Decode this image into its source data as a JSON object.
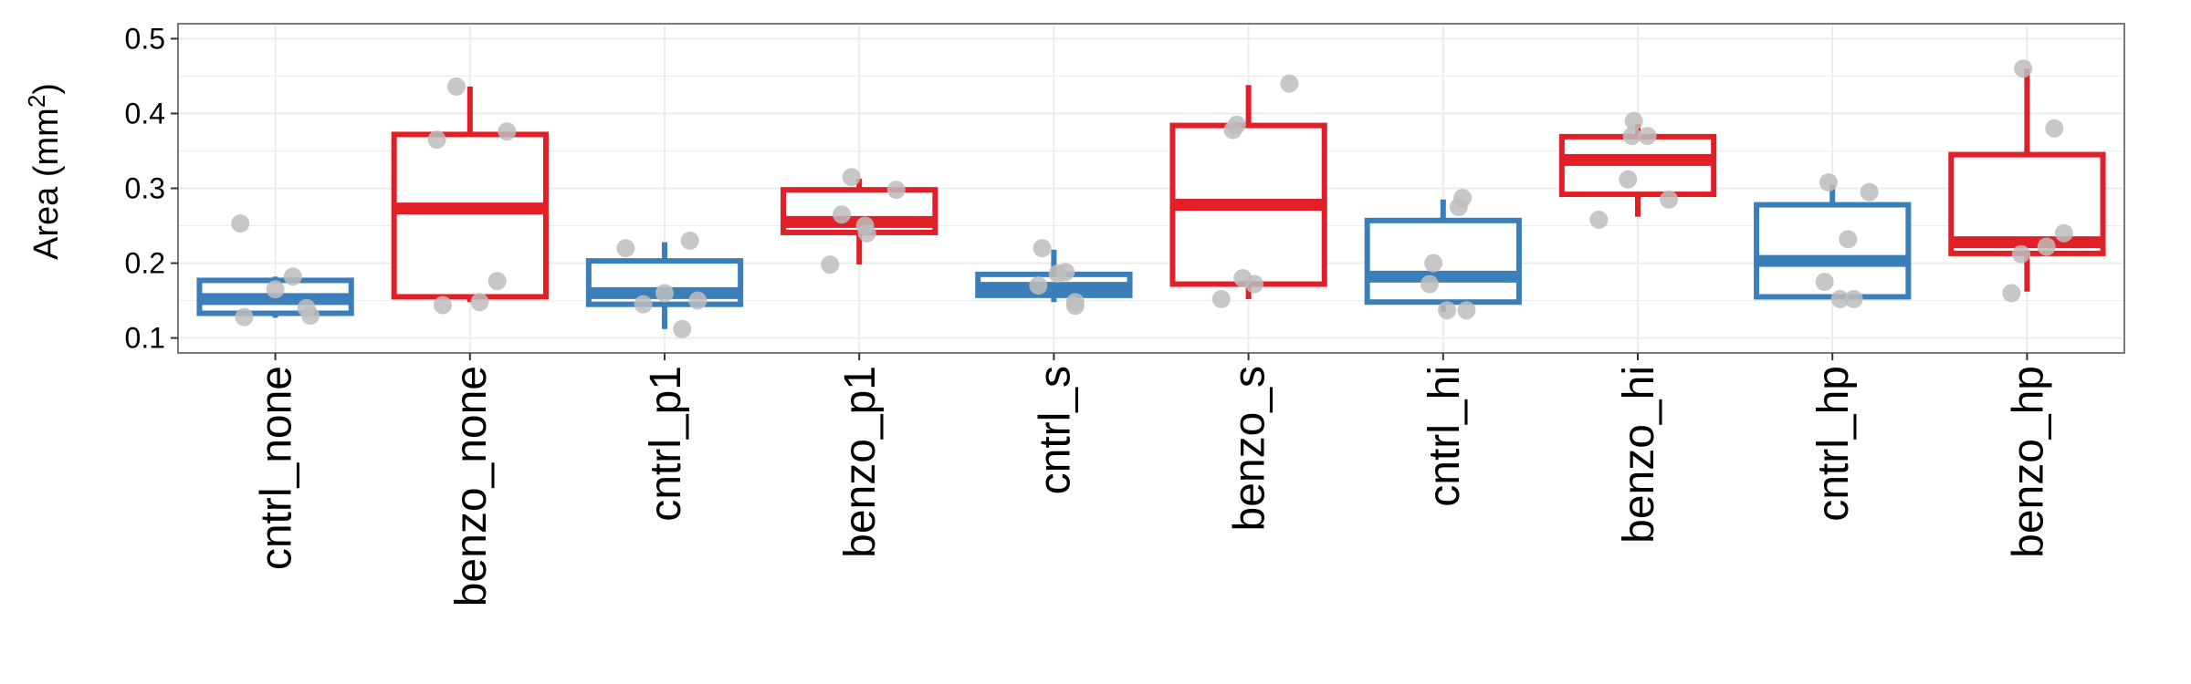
{
  "chart_data": {
    "type": "box",
    "ylabel": "Area (mm",
    "ylabel_superscript": "2",
    "ylabel_suffix": ")",
    "ylim": [
      0.08,
      0.52
    ],
    "yticks": [
      0.1,
      0.2,
      0.3,
      0.4,
      0.5
    ],
    "ytick_labels": [
      "0.1",
      "0.2",
      "0.3",
      "0.4",
      "0.5"
    ],
    "grid": true,
    "colors": {
      "cntrl": "#3a7fba",
      "benzo": "#e01f26",
      "points": "#bdbdbd",
      "panel_border": "#7a7a7a",
      "grid": "#ececec"
    },
    "categories": [
      "cntrl_none",
      "benzo_none",
      "cntrl_p1",
      "benzo_p1",
      "cntrl_s",
      "benzo_s",
      "cntrl_hi",
      "benzo_hi",
      "cntrl_hp",
      "benzo_hp"
    ],
    "boxes": [
      {
        "group": "cntrl",
        "whislo": 0.127,
        "q1": 0.133,
        "med": 0.152,
        "q3": 0.177,
        "whishi": 0.182,
        "points": [
          [
            -0.18,
            0.253
          ],
          [
            0.0,
            0.165
          ],
          [
            0.09,
            0.182
          ],
          [
            0.16,
            0.14
          ],
          [
            -0.16,
            0.128
          ],
          [
            0.18,
            0.13
          ]
        ]
      },
      {
        "group": "benzo",
        "whislo": 0.148,
        "q1": 0.155,
        "med": 0.273,
        "q3": 0.372,
        "whishi": 0.436,
        "points": [
          [
            -0.07,
            0.436
          ],
          [
            -0.17,
            0.365
          ],
          [
            0.19,
            0.376
          ],
          [
            0.14,
            0.176
          ],
          [
            -0.14,
            0.144
          ],
          [
            0.05,
            0.148
          ]
        ]
      },
      {
        "group": "cntrl",
        "whislo": 0.112,
        "q1": 0.145,
        "med": 0.16,
        "q3": 0.203,
        "whishi": 0.228,
        "points": [
          [
            -0.2,
            0.22
          ],
          [
            0.13,
            0.23
          ],
          [
            0.0,
            0.16
          ],
          [
            0.17,
            0.15
          ],
          [
            -0.11,
            0.145
          ],
          [
            0.09,
            0.112
          ]
        ]
      },
      {
        "group": "benzo",
        "whislo": 0.198,
        "q1": 0.241,
        "med": 0.255,
        "q3": 0.298,
        "whishi": 0.313,
        "points": [
          [
            -0.04,
            0.315
          ],
          [
            0.19,
            0.298
          ],
          [
            -0.09,
            0.265
          ],
          [
            0.04,
            0.24
          ],
          [
            -0.15,
            0.198
          ],
          [
            0.03,
            0.25
          ]
        ]
      },
      {
        "group": "cntrl",
        "whislo": 0.148,
        "q1": 0.157,
        "med": 0.167,
        "q3": 0.185,
        "whishi": 0.218,
        "points": [
          [
            -0.06,
            0.22
          ],
          [
            0.06,
            0.188
          ],
          [
            -0.08,
            0.17
          ],
          [
            0.02,
            0.186
          ],
          [
            0.11,
            0.148
          ],
          [
            0.11,
            0.143
          ]
        ]
      },
      {
        "group": "benzo",
        "whislo": 0.152,
        "q1": 0.172,
        "med": 0.278,
        "q3": 0.384,
        "whishi": 0.438,
        "points": [
          [
            0.21,
            0.44
          ],
          [
            -0.06,
            0.385
          ],
          [
            -0.08,
            0.378
          ],
          [
            -0.03,
            0.18
          ],
          [
            -0.14,
            0.152
          ],
          [
            0.03,
            0.172
          ]
        ]
      },
      {
        "group": "cntrl",
        "whislo": 0.135,
        "q1": 0.148,
        "med": 0.182,
        "q3": 0.257,
        "whishi": 0.285,
        "points": [
          [
            0.1,
            0.287
          ],
          [
            0.08,
            0.275
          ],
          [
            -0.05,
            0.2
          ],
          [
            -0.07,
            0.172
          ],
          [
            0.02,
            0.137
          ],
          [
            0.12,
            0.137
          ]
        ]
      },
      {
        "group": "benzo",
        "whislo": 0.262,
        "q1": 0.292,
        "med": 0.338,
        "q3": 0.369,
        "whishi": 0.386,
        "points": [
          [
            -0.02,
            0.39
          ],
          [
            -0.03,
            0.37
          ],
          [
            0.05,
            0.37
          ],
          [
            -0.05,
            0.312
          ],
          [
            0.16,
            0.285
          ],
          [
            -0.2,
            0.258
          ]
        ]
      },
      {
        "group": "cntrl",
        "whislo": 0.155,
        "q1": 0.155,
        "med": 0.203,
        "q3": 0.278,
        "whishi": 0.305,
        "points": [
          [
            -0.02,
            0.308
          ],
          [
            0.19,
            0.295
          ],
          [
            0.08,
            0.232
          ],
          [
            -0.04,
            0.175
          ],
          [
            0.04,
            0.152
          ],
          [
            0.11,
            0.152
          ]
        ]
      },
      {
        "group": "benzo",
        "whislo": 0.162,
        "q1": 0.213,
        "med": 0.228,
        "q3": 0.345,
        "whishi": 0.46,
        "points": [
          [
            -0.02,
            0.46
          ],
          [
            0.14,
            0.38
          ],
          [
            0.19,
            0.24
          ],
          [
            0.1,
            0.222
          ],
          [
            -0.03,
            0.212
          ],
          [
            -0.08,
            0.16
          ]
        ]
      }
    ]
  }
}
